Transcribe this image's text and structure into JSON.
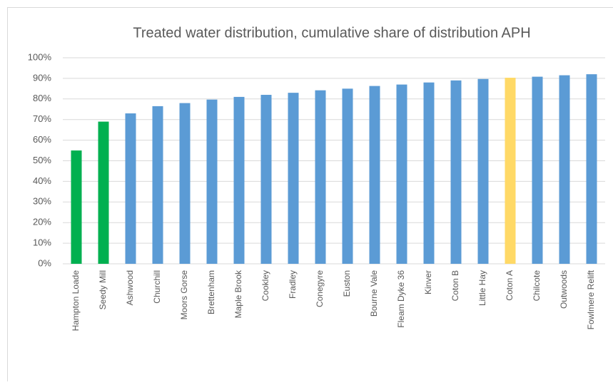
{
  "chart_data": {
    "type": "bar",
    "title": "Treated water distribution, cumulative share of distribution APH",
    "categories": [
      "Hampton Loade",
      "Seedy Mill",
      "Ashwood",
      "Churchill",
      "Moors Gorse",
      "Brettenham",
      "Maple Brook",
      "Cookley",
      "Fradley",
      "Conegyre",
      "Euston",
      "Bourne Vale",
      "Fleam Dyke 36",
      "Kinver",
      "Coton B",
      "Little Hay",
      "Coton A",
      "Chilcote",
      "Outwoods",
      "Fowlmere Relift"
    ],
    "values": [
      55,
      69,
      73,
      76.5,
      78,
      79.7,
      81,
      82,
      83,
      84.2,
      85,
      86.3,
      87,
      88,
      89,
      89.7,
      90.3,
      90.8,
      91.5,
      92
    ],
    "colors": [
      "#00b050",
      "#00b050",
      "#5b9bd5",
      "#5b9bd5",
      "#5b9bd5",
      "#5b9bd5",
      "#5b9bd5",
      "#5b9bd5",
      "#5b9bd5",
      "#5b9bd5",
      "#5b9bd5",
      "#5b9bd5",
      "#5b9bd5",
      "#5b9bd5",
      "#5b9bd5",
      "#5b9bd5",
      "#ffd966",
      "#5b9bd5",
      "#5b9bd5",
      "#5b9bd5"
    ],
    "ylim": [
      0,
      100
    ],
    "yticks": [
      {
        "value": 0,
        "label": "0%"
      },
      {
        "value": 10,
        "label": "10%"
      },
      {
        "value": 20,
        "label": "20%"
      },
      {
        "value": 30,
        "label": "30%"
      },
      {
        "value": 40,
        "label": "40%"
      },
      {
        "value": 50,
        "label": "50%"
      },
      {
        "value": 60,
        "label": "60%"
      },
      {
        "value": 70,
        "label": "70%"
      },
      {
        "value": 80,
        "label": "80%"
      },
      {
        "value": 90,
        "label": "90%"
      },
      {
        "value": 100,
        "label": "100%"
      }
    ],
    "grid": true
  }
}
